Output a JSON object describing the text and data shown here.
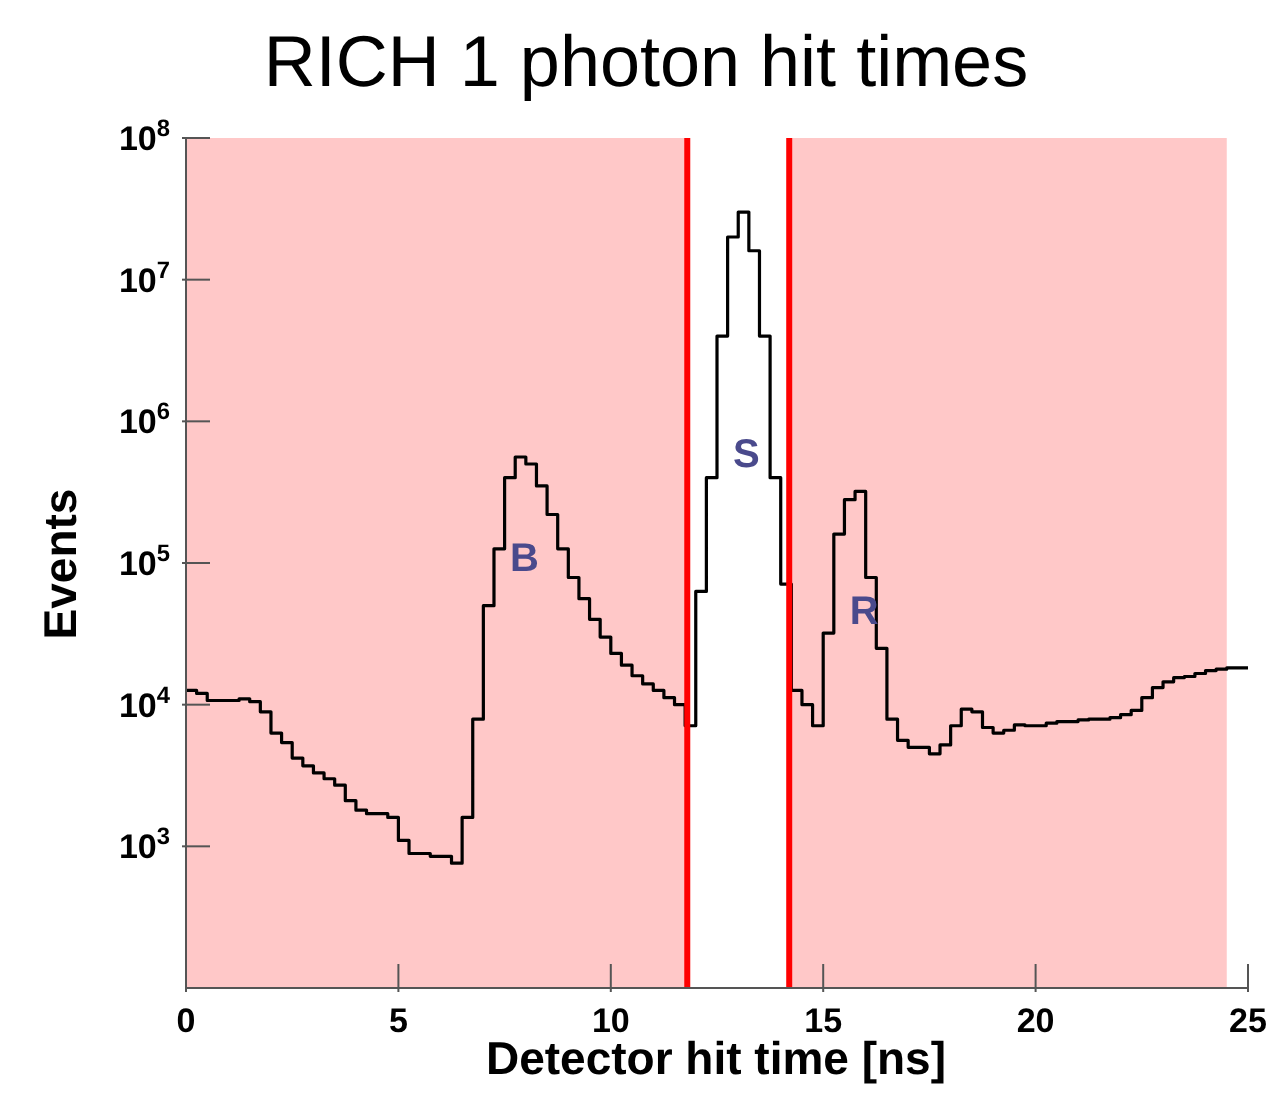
{
  "chart_data": {
    "type": "histogram",
    "title": "RICH 1 photon hit times",
    "xlabel": "Detector hit time [ns]",
    "ylabel": "Events",
    "bins": [
      0,
      0.25,
      0.5,
      0.75,
      1,
      1.25,
      1.5,
      1.75,
      2,
      2.25,
      2.5,
      2.75,
      3,
      3.25,
      3.5,
      3.75,
      4,
      4.25,
      4.5,
      4.75,
      5,
      5.25,
      5.5,
      5.75,
      6,
      6.25,
      6.5,
      6.75,
      7,
      7.25,
      7.5,
      7.75,
      8,
      8.25,
      8.5,
      8.75,
      9,
      9.25,
      9.5,
      9.75,
      10,
      10.25,
      10.5,
      10.75,
      11,
      11.25,
      11.5,
      11.75,
      12,
      12.25,
      12.5,
      12.75,
      13,
      13.25,
      13.5,
      13.75,
      14,
      14.25,
      14.5,
      14.75,
      15,
      15.25,
      15.5,
      15.75,
      16,
      16.25,
      16.5,
      16.75,
      17,
      17.25,
      17.5,
      17.75,
      18,
      18.25,
      18.5,
      18.75,
      19,
      19.25,
      19.5,
      19.75,
      20,
      20.25,
      20.5,
      20.75,
      21,
      21.25,
      21.5,
      21.75,
      22,
      22.25,
      22.5,
      22.75,
      23,
      23.25,
      23.5,
      23.75,
      24,
      24.25,
      24.5,
      24.75,
      25
    ],
    "values": [
      12600,
      12000,
      10700,
      10700,
      10700,
      11000,
      10500,
      8900,
      6300,
      5400,
      4200,
      3700,
      3300,
      3000,
      2700,
      2100,
      1800,
      1700,
      1700,
      1600,
      1100,
      890,
      890,
      850,
      850,
      760,
      1600,
      7900,
      50000,
      126000,
      400000,
      560000,
      500000,
      350000,
      220000,
      126000,
      79000,
      56000,
      40000,
      30000,
      23000,
      19000,
      16000,
      14000,
      12600,
      11200,
      10000,
      7100,
      63000,
      400000,
      4000000,
      20000000,
      30000000,
      16000000,
      4000000,
      400000,
      71000,
      12600,
      10000,
      7100,
      32000,
      160000,
      280000,
      320000,
      79000,
      25000,
      7900,
      5600,
      5000,
      5000,
      4500,
      5200,
      7100,
      9300,
      8900,
      6900,
      6300,
      6600,
      7200,
      7100,
      7100,
      7400,
      7600,
      7600,
      7800,
      7900,
      7900,
      8100,
      8500,
      9100,
      11200,
      13200,
      14500,
      15500,
      15800,
      16600,
      17400,
      17800,
      18200,
      18200
    ],
    "color": "#000000",
    "log": "y",
    "xlim": [
      0,
      25
    ],
    "xticks": [
      0,
      5,
      10,
      15,
      20,
      25
    ],
    "ylim": [
      100,
      100000000
    ],
    "yticks": [
      {
        "value": 1000,
        "label": "10$^{3}$"
      },
      {
        "value": 10000,
        "label": "10$^{4}$"
      },
      {
        "value": 100000,
        "label": "10$^{5}$"
      },
      {
        "value": 1000000,
        "label": "10$^{6}$"
      },
      {
        "value": 10000000,
        "label": "10$^{7}$"
      },
      {
        "value": 100000000,
        "label": "10$^{8}$"
      }
    ],
    "bands": [
      {
        "axis": "x",
        "from": 0,
        "to": 11.8,
        "color": "#ffc8c8"
      },
      {
        "axis": "x",
        "from": 14.2,
        "to": 24.5,
        "color": "#ffc8c8"
      }
    ],
    "ref_lines": [
      {
        "axis": "x",
        "value": 11.8,
        "color": "#ff0000"
      },
      {
        "axis": "x",
        "value": 14.2,
        "color": "#ff0000"
      }
    ],
    "annotations": [
      {
        "text": "B",
        "x": 7.25,
        "y": 110000
      },
      {
        "text": "S",
        "x": 12.5,
        "y": 600000
      },
      {
        "text": "R",
        "x": 15.25,
        "y": 47000
      }
    ],
    "grid": false,
    "legend": false
  }
}
